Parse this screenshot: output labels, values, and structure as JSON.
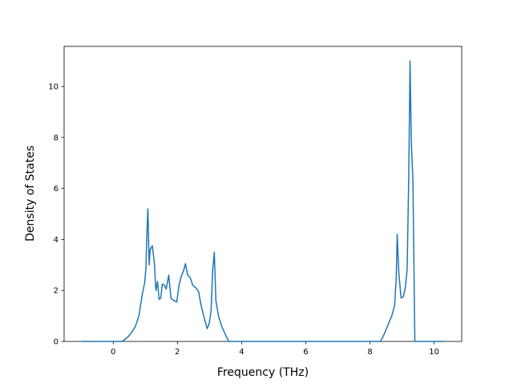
{
  "chart_data": {
    "type": "line",
    "xlabel": "Frequency (THz)",
    "ylabel": "Density of States",
    "series": [
      {
        "color": "#1f77b4",
        "x": [
          -0.97,
          0.28,
          0.48,
          0.68,
          0.8,
          0.9,
          0.98,
          1.02,
          1.05,
          1.08,
          1.12,
          1.15,
          1.22,
          1.28,
          1.33,
          1.38,
          1.43,
          1.48,
          1.53,
          1.6,
          1.65,
          1.73,
          1.8,
          1.87,
          1.98,
          2.05,
          2.12,
          2.2,
          2.25,
          2.32,
          2.4,
          2.48,
          2.58,
          2.66,
          2.75,
          2.85,
          2.93,
          2.99,
          3.05,
          3.1,
          3.15,
          3.2,
          3.28,
          3.38,
          3.5,
          3.6,
          8.33,
          8.45,
          8.58,
          8.68,
          8.77,
          8.82,
          8.85,
          8.9,
          8.97,
          9.04,
          9.1,
          9.16,
          9.21,
          9.25,
          9.29,
          9.34,
          9.4,
          10.3
        ],
        "values": [
          0,
          0,
          0.2,
          0.55,
          1.0,
          1.8,
          2.3,
          2.9,
          4.3,
          5.2,
          3.0,
          3.6,
          3.75,
          3.1,
          2.0,
          2.35,
          1.65,
          1.7,
          2.25,
          2.2,
          2.05,
          2.6,
          1.7,
          1.62,
          1.55,
          2.2,
          2.55,
          2.8,
          3.05,
          2.6,
          2.5,
          2.2,
          2.1,
          1.95,
          1.35,
          0.85,
          0.5,
          0.7,
          1.2,
          2.8,
          3.5,
          1.6,
          1.0,
          0.6,
          0.25,
          0,
          0,
          0.3,
          0.7,
          1.0,
          1.4,
          2.5,
          4.2,
          2.7,
          1.7,
          1.75,
          2.1,
          2.8,
          6.5,
          11.0,
          7.8,
          6.3,
          0,
          0
        ]
      }
    ],
    "xlim": [
      -1.53,
      10.86
    ],
    "xticks": [
      0,
      2,
      4,
      6,
      8,
      10
    ],
    "ylim": [
      0,
      11.57
    ],
    "yticks": [
      0,
      2,
      4,
      6,
      8,
      10
    ],
    "grid": false
  }
}
